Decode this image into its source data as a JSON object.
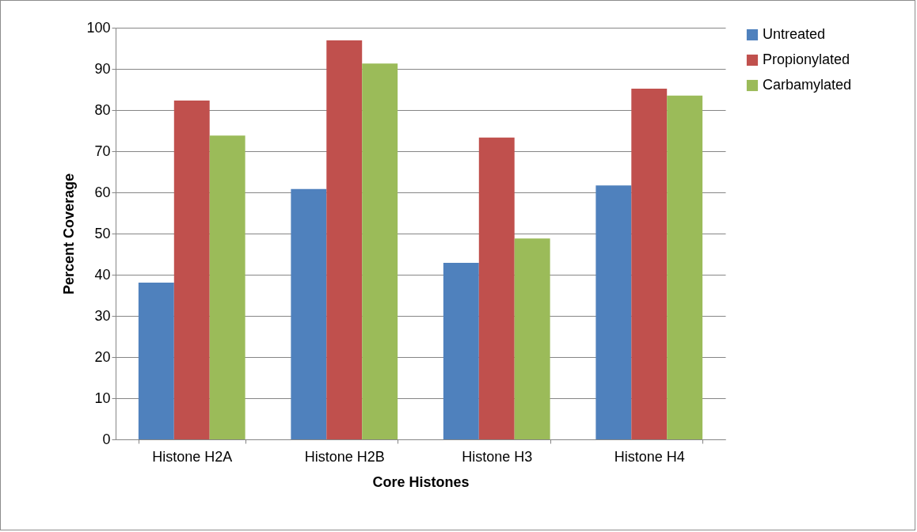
{
  "chart_data": {
    "type": "bar",
    "xlabel": "Core Histones",
    "ylabel": "Percent Coverage",
    "categories": [
      "Histone H2A",
      "Histone H2B",
      "Histone H3",
      "Histone H4"
    ],
    "series": [
      {
        "name": "Untreated",
        "color": "#4f81bd",
        "values": [
          38.1,
          60.8,
          42.9,
          61.7
        ]
      },
      {
        "name": "Propionylated",
        "color": "#c0504d",
        "values": [
          82.3,
          96.9,
          73.3,
          85.2
        ]
      },
      {
        "name": "Carbamylated",
        "color": "#9bbb59",
        "values": [
          73.8,
          91.3,
          48.8,
          83.5
        ]
      }
    ],
    "ylim": [
      0,
      100
    ],
    "yticks": [
      0,
      10,
      20,
      30,
      40,
      50,
      60,
      70,
      80,
      90,
      100
    ],
    "grid": "y",
    "legend": "right"
  }
}
